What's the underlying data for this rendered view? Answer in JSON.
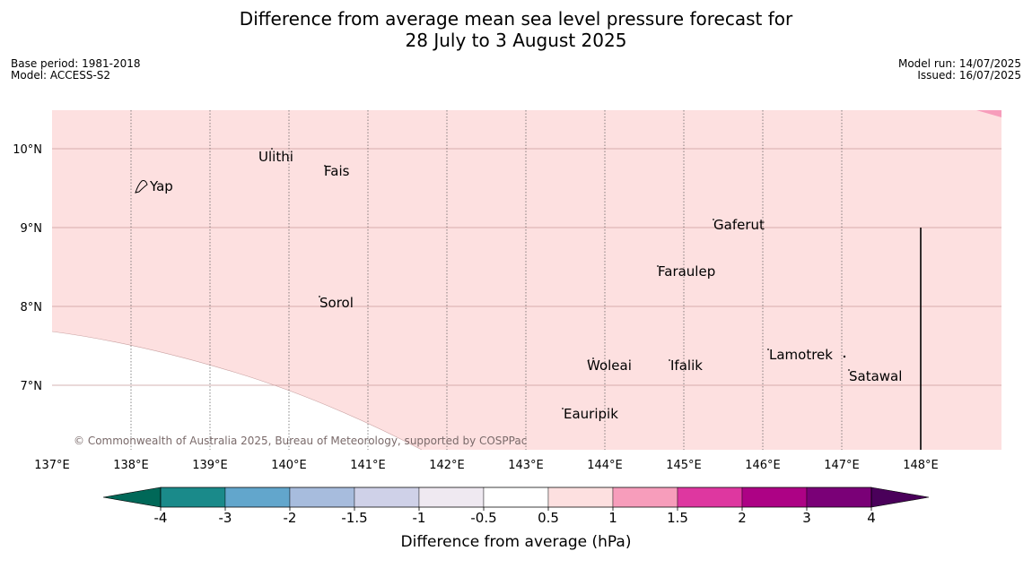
{
  "header": {
    "title_line1": "Difference from average mean sea level pressure forecast for",
    "title_line2": "28 July to 3 August 2025",
    "base_period": "Base period: 1981-2018",
    "model": "Model: ACCESS-S2",
    "model_run": "Model run: 14/07/2025",
    "issued": "Issued: 16/07/2025"
  },
  "map": {
    "lon_range": [
      137,
      149
    ],
    "lat_range": [
      6.2,
      10.5
    ],
    "lon_labels": [
      "137°E",
      "138°E",
      "139°E",
      "140°E",
      "141°E",
      "142°E",
      "143°E",
      "144°E",
      "145°E",
      "146°E",
      "147°E",
      "148°E"
    ],
    "lat_labels": [
      "10°N",
      "9°N",
      "8°N",
      "7°N"
    ],
    "places": [
      {
        "name": "Yap"
      },
      {
        "name": "Ulithi"
      },
      {
        "name": "Fais"
      },
      {
        "name": "Gaferut"
      },
      {
        "name": "Faraulep"
      },
      {
        "name": "Sorol"
      },
      {
        "name": "Lamotrek"
      },
      {
        "name": "Woleai"
      },
      {
        "name": "Ifalik"
      },
      {
        "name": "Satawal"
      },
      {
        "name": "Eauripik"
      }
    ],
    "copyright": "© Commonwealth of Australia 2025, Bureau of Meteorology, supported by COSPPac",
    "fill_color": "#fde0e0",
    "background_color": "#ffffff"
  },
  "colorbar": {
    "ticks": [
      "-4",
      "-3",
      "-2",
      "-1.5",
      "-1",
      "-0.5",
      "0.5",
      "1",
      "1.5",
      "2",
      "3",
      "4"
    ],
    "colors": [
      "#1a8a8a",
      "#62a6cc",
      "#a7bcdd",
      "#cfd1e8",
      "#efe9f1",
      "#ffffff",
      "#fde0e0",
      "#f79dbb",
      "#de37a0",
      "#ad0285",
      "#7a0077"
    ],
    "extend_low_color": "#006858",
    "extend_high_color": "#4a005a",
    "label": "Difference from average (hPa)"
  }
}
